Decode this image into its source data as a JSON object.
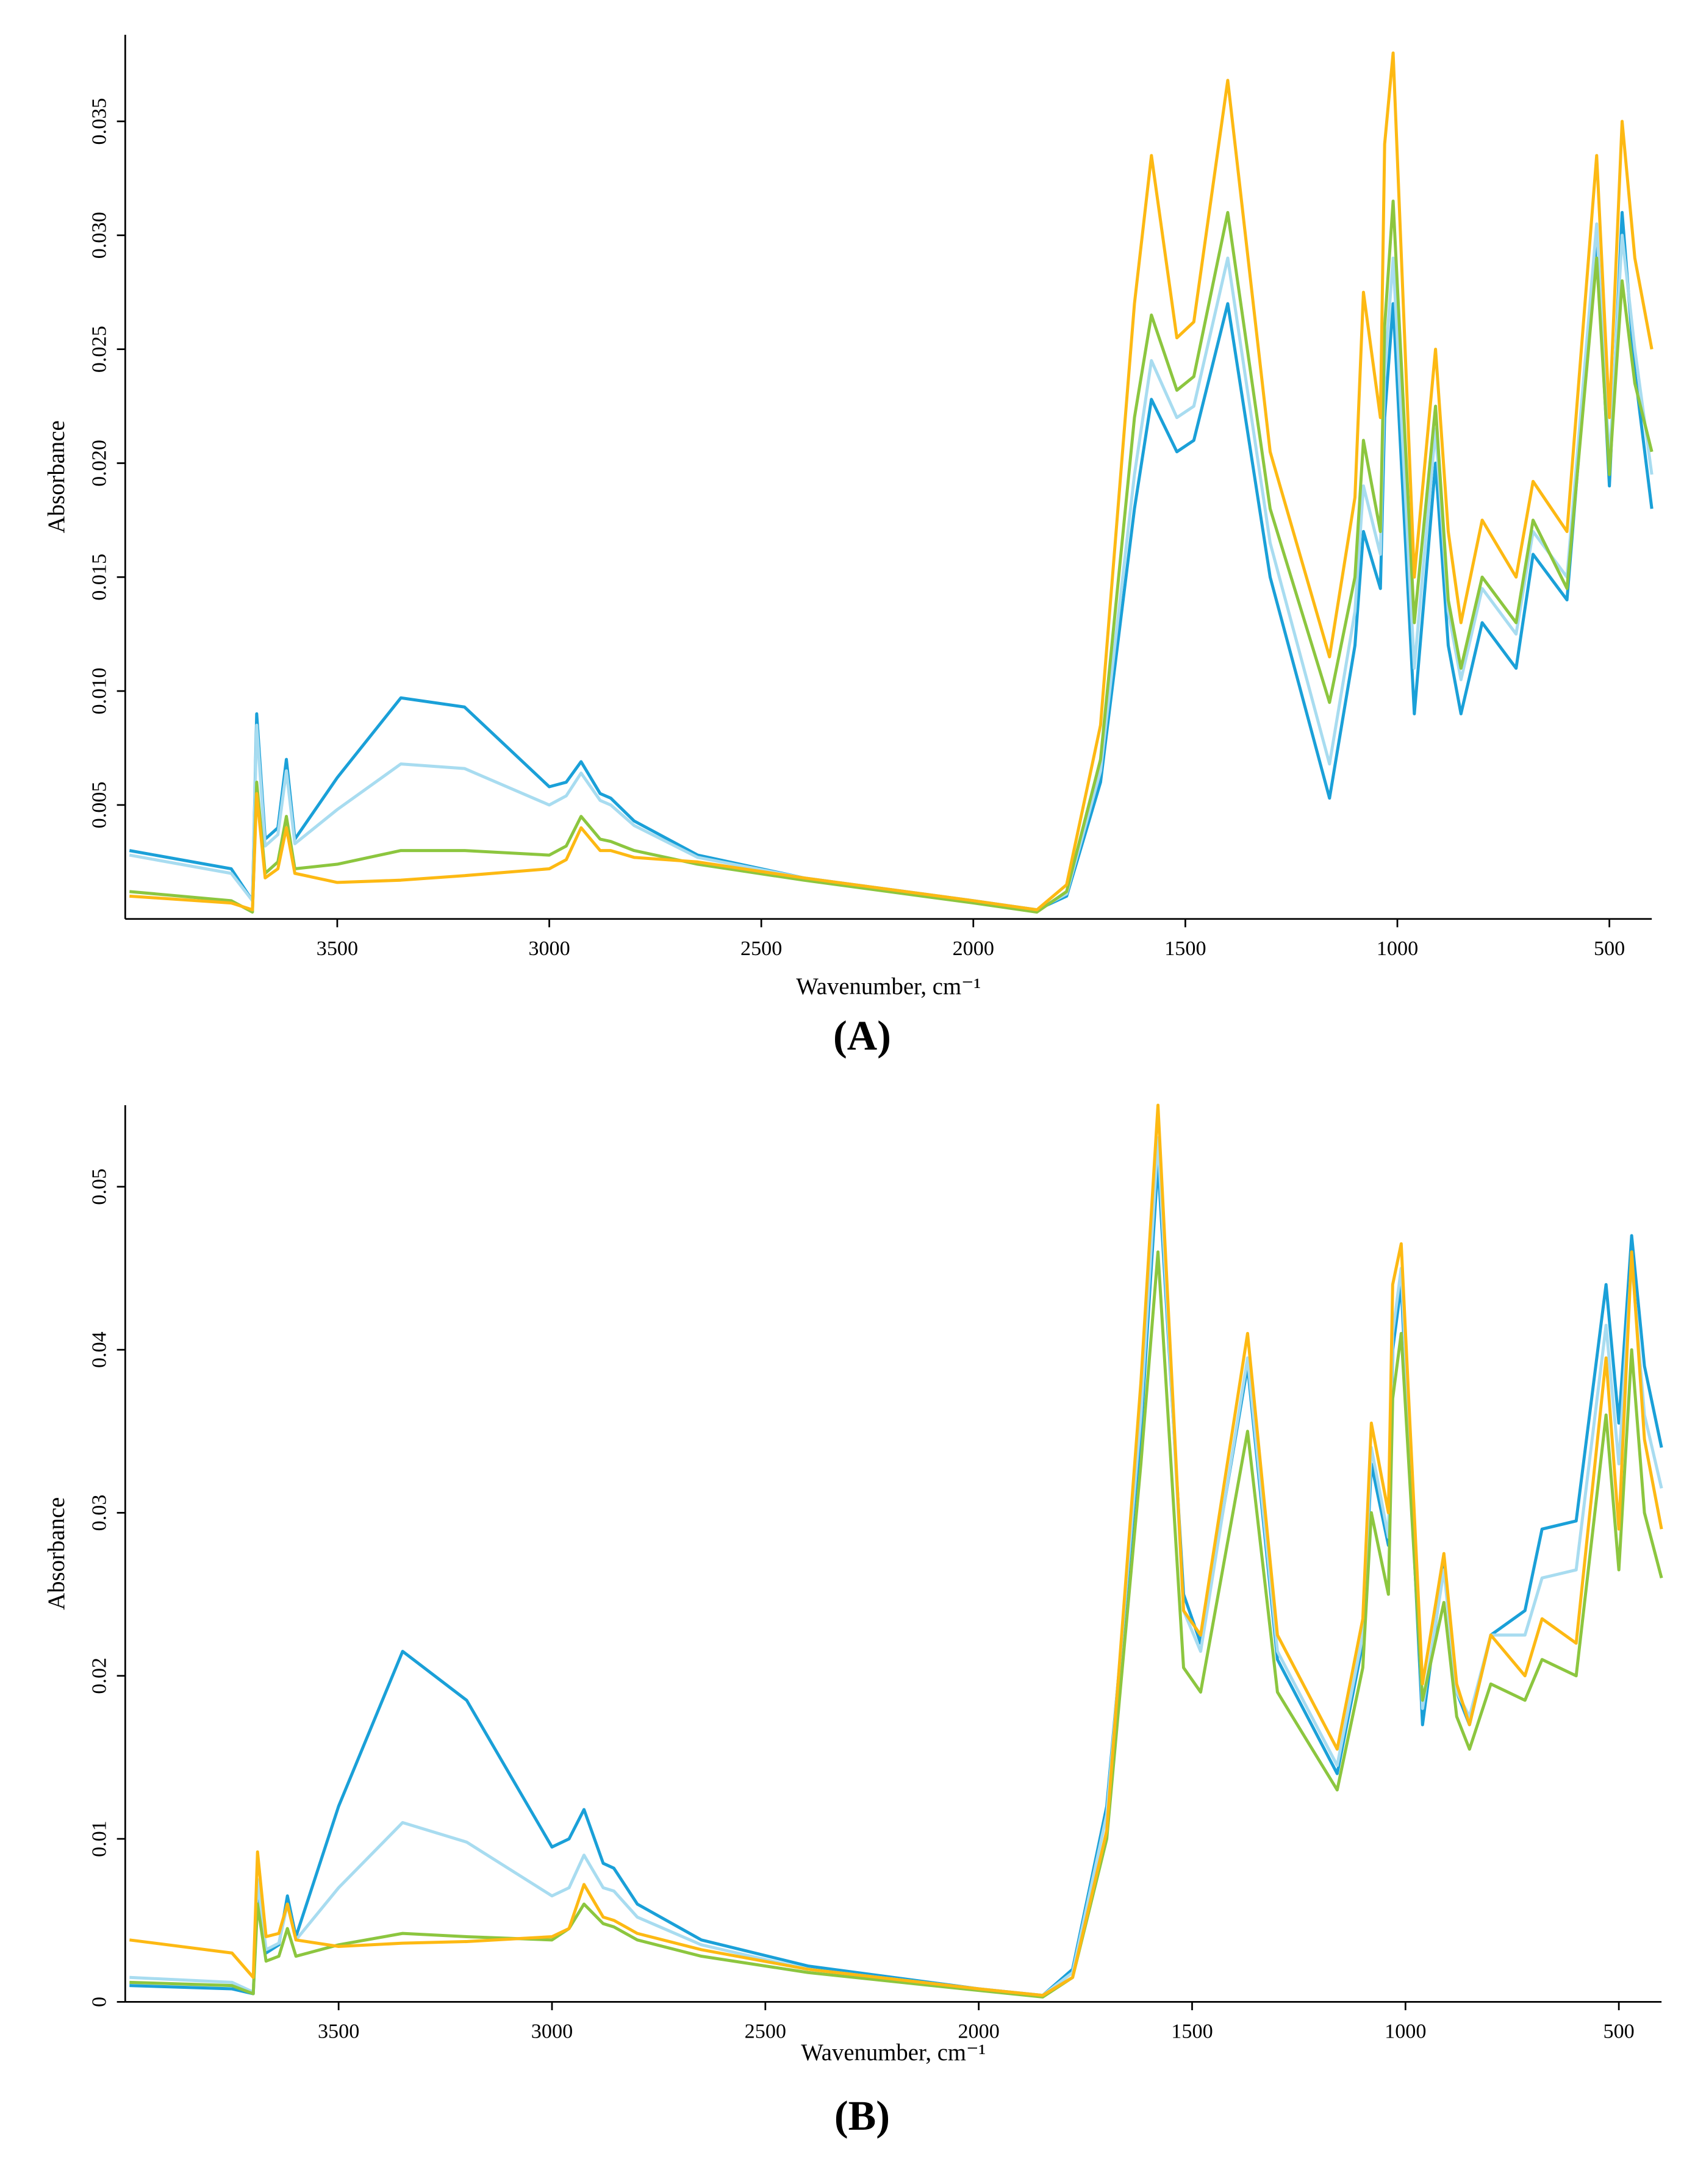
{
  "chart_data": [
    {
      "type": "line",
      "panel_label": "(A)",
      "xlabel": "Wavenumber, cm⁻¹",
      "ylabel": "Absorbance",
      "xlim": [
        4000,
        400
      ],
      "xticks": [
        3500,
        3000,
        2500,
        2000,
        1500,
        1000,
        500
      ],
      "ylim": [
        0,
        0.0388
      ],
      "yticks": [
        0.005,
        {
          "value": 0.01,
          "label": "0.010"
        },
        0.015,
        {
          "value": 0.02,
          "label": "0.020"
        },
        0.025,
        {
          "value": 0.03,
          "label": "0.030"
        },
        0.035
      ],
      "x": [
        3990,
        3750,
        3700,
        3690,
        3670,
        3640,
        3620,
        3600,
        3500,
        3350,
        3200,
        3000,
        2960,
        2925,
        2880,
        2855,
        2800,
        2650,
        2400,
        2000,
        1850,
        1780,
        1700,
        1620,
        1580,
        1520,
        1480,
        1400,
        1300,
        1160,
        1100,
        1080,
        1040,
        1030,
        1010,
        960,
        910,
        880,
        850,
        800,
        720,
        680,
        600,
        530,
        500,
        470,
        440,
        400
      ],
      "series": [
        {
          "color": "#1aa0d8",
          "values": [
            0.003,
            0.0022,
            0.0008,
            0.009,
            0.0035,
            0.004,
            0.007,
            0.0035,
            0.0062,
            0.0097,
            0.0093,
            0.0058,
            0.006,
            0.0069,
            0.0055,
            0.0053,
            0.0043,
            0.0028,
            0.0018,
            0.0008,
            0.0004,
            0.001,
            0.006,
            0.018,
            0.0228,
            0.0205,
            0.021,
            0.027,
            0.015,
            0.0053,
            0.012,
            0.017,
            0.0145,
            0.022,
            0.027,
            0.009,
            0.02,
            0.012,
            0.009,
            0.013,
            0.011,
            0.016,
            0.014,
            0.03,
            0.019,
            0.031,
            0.024,
            0.018
          ]
        },
        {
          "color": "#a8dcf0",
          "values": [
            0.0028,
            0.002,
            0.0008,
            0.0085,
            0.0032,
            0.0037,
            0.0065,
            0.0033,
            0.0048,
            0.0068,
            0.0066,
            0.005,
            0.0054,
            0.0064,
            0.0052,
            0.005,
            0.0041,
            0.0027,
            0.0018,
            0.0008,
            0.0004,
            0.0011,
            0.0065,
            0.0195,
            0.0245,
            0.022,
            0.0225,
            0.029,
            0.0165,
            0.0068,
            0.0135,
            0.019,
            0.016,
            0.024,
            0.029,
            0.011,
            0.0215,
            0.0135,
            0.0105,
            0.0145,
            0.0125,
            0.017,
            0.015,
            0.0305,
            0.02,
            0.03,
            0.025,
            0.0195
          ]
        },
        {
          "color": "#8cc63f",
          "values": [
            0.0012,
            0.0008,
            0.0003,
            0.006,
            0.002,
            0.0025,
            0.0045,
            0.0022,
            0.0024,
            0.003,
            0.003,
            0.0028,
            0.0032,
            0.0045,
            0.0035,
            0.0034,
            0.003,
            0.0024,
            0.0017,
            0.0007,
            0.0003,
            0.0012,
            0.007,
            0.022,
            0.0265,
            0.0232,
            0.0238,
            0.031,
            0.018,
            0.0095,
            0.015,
            0.021,
            0.017,
            0.026,
            0.0315,
            0.013,
            0.0225,
            0.014,
            0.011,
            0.015,
            0.013,
            0.0175,
            0.0145,
            0.029,
            0.0195,
            0.028,
            0.0235,
            0.0205
          ]
        },
        {
          "color": "#fdb913",
          "values": [
            0.001,
            0.0007,
            0.0004,
            0.0055,
            0.0018,
            0.0022,
            0.004,
            0.002,
            0.0016,
            0.0017,
            0.0019,
            0.0022,
            0.0026,
            0.004,
            0.003,
            0.003,
            0.0027,
            0.0025,
            0.0018,
            0.0008,
            0.0004,
            0.0015,
            0.0085,
            0.027,
            0.0335,
            0.0255,
            0.0262,
            0.0368,
            0.0205,
            0.0115,
            0.0185,
            0.0275,
            0.022,
            0.034,
            0.038,
            0.015,
            0.025,
            0.017,
            0.013,
            0.0175,
            0.015,
            0.0192,
            0.017,
            0.0335,
            0.022,
            0.035,
            0.029,
            0.025
          ]
        }
      ]
    },
    {
      "type": "line",
      "panel_label": "(B)",
      "xlabel": "Wavenumber, cm⁻¹",
      "ylabel": "Absorbance",
      "xlim": [
        4000,
        400
      ],
      "xticks": [
        3500,
        3000,
        2500,
        2000,
        1500,
        1000,
        500
      ],
      "ylim": [
        0,
        0.055
      ],
      "yticks": [
        0,
        0.01,
        0.02,
        0.03,
        0.04,
        0.05
      ],
      "x": [
        3990,
        3750,
        3700,
        3690,
        3670,
        3640,
        3620,
        3600,
        3500,
        3350,
        3200,
        3000,
        2960,
        2925,
        2880,
        2855,
        2800,
        2650,
        2400,
        2000,
        1850,
        1780,
        1700,
        1620,
        1580,
        1520,
        1480,
        1370,
        1300,
        1160,
        1100,
        1080,
        1040,
        1030,
        1010,
        960,
        910,
        880,
        850,
        800,
        720,
        680,
        600,
        530,
        500,
        470,
        440,
        400
      ],
      "series": [
        {
          "color": "#1aa0d8",
          "values": [
            0.001,
            0.0008,
            0.0005,
            0.007,
            0.003,
            0.0035,
            0.0065,
            0.004,
            0.012,
            0.0215,
            0.0185,
            0.0095,
            0.01,
            0.0118,
            0.0085,
            0.0082,
            0.006,
            0.0038,
            0.0022,
            0.0008,
            0.0004,
            0.002,
            0.012,
            0.035,
            0.0515,
            0.025,
            0.022,
            0.039,
            0.021,
            0.014,
            0.022,
            0.033,
            0.028,
            0.04,
            0.044,
            0.017,
            0.027,
            0.019,
            0.017,
            0.0225,
            0.024,
            0.029,
            0.0295,
            0.044,
            0.0355,
            0.047,
            0.039,
            0.034
          ]
        },
        {
          "color": "#a8dcf0",
          "values": [
            0.0015,
            0.0012,
            0.0006,
            0.0075,
            0.0032,
            0.0036,
            0.006,
            0.0038,
            0.007,
            0.011,
            0.0098,
            0.0065,
            0.007,
            0.009,
            0.007,
            0.0068,
            0.0052,
            0.0035,
            0.002,
            0.0008,
            0.0004,
            0.0018,
            0.0115,
            0.036,
            0.053,
            0.024,
            0.0215,
            0.0395,
            0.0215,
            0.0145,
            0.0225,
            0.034,
            0.0285,
            0.041,
            0.045,
            0.018,
            0.0265,
            0.019,
            0.0175,
            0.0225,
            0.0225,
            0.026,
            0.0265,
            0.0415,
            0.033,
            0.0455,
            0.036,
            0.0315
          ]
        },
        {
          "color": "#8cc63f",
          "values": [
            0.0012,
            0.001,
            0.0005,
            0.006,
            0.0025,
            0.0028,
            0.0045,
            0.0028,
            0.0035,
            0.0042,
            0.004,
            0.0038,
            0.0045,
            0.006,
            0.0048,
            0.0046,
            0.0038,
            0.0028,
            0.0018,
            0.0007,
            0.0003,
            0.0015,
            0.01,
            0.033,
            0.046,
            0.0205,
            0.019,
            0.035,
            0.019,
            0.013,
            0.0205,
            0.03,
            0.025,
            0.037,
            0.041,
            0.0185,
            0.0245,
            0.0175,
            0.0155,
            0.0195,
            0.0185,
            0.021,
            0.02,
            0.036,
            0.0265,
            0.04,
            0.03,
            0.026
          ]
        },
        {
          "color": "#fdb913",
          "values": [
            0.0038,
            0.003,
            0.0015,
            0.0092,
            0.004,
            0.0042,
            0.006,
            0.0038,
            0.0034,
            0.0036,
            0.0037,
            0.004,
            0.0045,
            0.0072,
            0.0052,
            0.005,
            0.0042,
            0.0032,
            0.002,
            0.0008,
            0.0004,
            0.0015,
            0.0105,
            0.038,
            0.055,
            0.024,
            0.0225,
            0.041,
            0.0225,
            0.0155,
            0.0235,
            0.0355,
            0.03,
            0.044,
            0.0465,
            0.0195,
            0.0275,
            0.0195,
            0.017,
            0.0225,
            0.02,
            0.0235,
            0.022,
            0.0395,
            0.029,
            0.046,
            0.0345,
            0.029
          ]
        }
      ]
    }
  ]
}
